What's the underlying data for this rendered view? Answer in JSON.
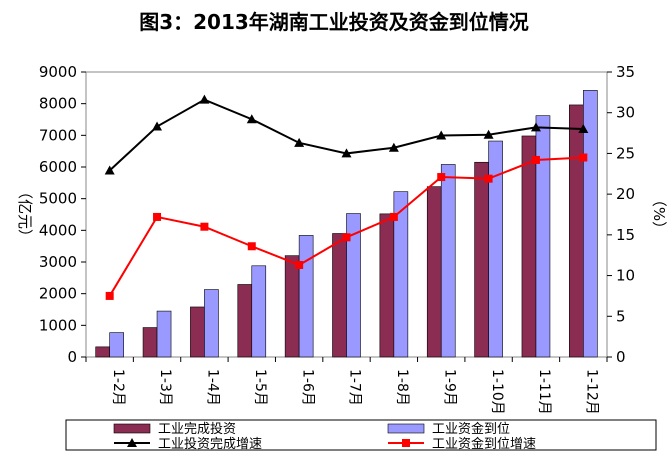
{
  "chart_data": {
    "type": "bar",
    "title": "图3：2013年湖南工业投资及资金到位情况",
    "categories": [
      "1-2月",
      "1-3月",
      "1-4月",
      "1-5月",
      "1-6月",
      "1-7月",
      "1-8月",
      "1-9月",
      "1-10月",
      "1-11月",
      "1-12月"
    ],
    "y_left": {
      "label": "（亿元）",
      "ylim": [
        0,
        9000
      ],
      "ticks": [
        0,
        1000,
        2000,
        3000,
        4000,
        5000,
        6000,
        7000,
        8000,
        9000
      ]
    },
    "y_right": {
      "label": "（%）",
      "ylim": [
        0,
        35
      ],
      "ticks": [
        0,
        5,
        10,
        15,
        20,
        25,
        30,
        35
      ]
    },
    "series": [
      {
        "name": "工业完成投资",
        "kind": "bar",
        "axis": "left",
        "color": "#8B2C52",
        "values": [
          320,
          930,
          1580,
          2290,
          3200,
          3900,
          4520,
          5380,
          6150,
          6980,
          7960
        ]
      },
      {
        "name": "工业资金到位",
        "kind": "bar",
        "axis": "left",
        "color": "#9999FF",
        "values": [
          770,
          1450,
          2130,
          2880,
          3840,
          4530,
          5220,
          6080,
          6820,
          7620,
          8420
        ]
      },
      {
        "name": "工业投资完成增速",
        "kind": "line",
        "axis": "right",
        "color": "#000000",
        "marker": "triangle",
        "values": [
          22.9,
          28.3,
          31.6,
          29.2,
          26.3,
          25.0,
          25.7,
          27.2,
          27.3,
          28.2,
          28.0
        ]
      },
      {
        "name": "工业资金到位增速",
        "kind": "line",
        "axis": "right",
        "color": "#FF0000",
        "marker": "square",
        "values": [
          7.5,
          17.2,
          16.0,
          13.6,
          11.3,
          14.7,
          17.2,
          22.1,
          21.9,
          24.2,
          24.5
        ]
      }
    ],
    "grid": false,
    "legend_position": "bottom"
  }
}
